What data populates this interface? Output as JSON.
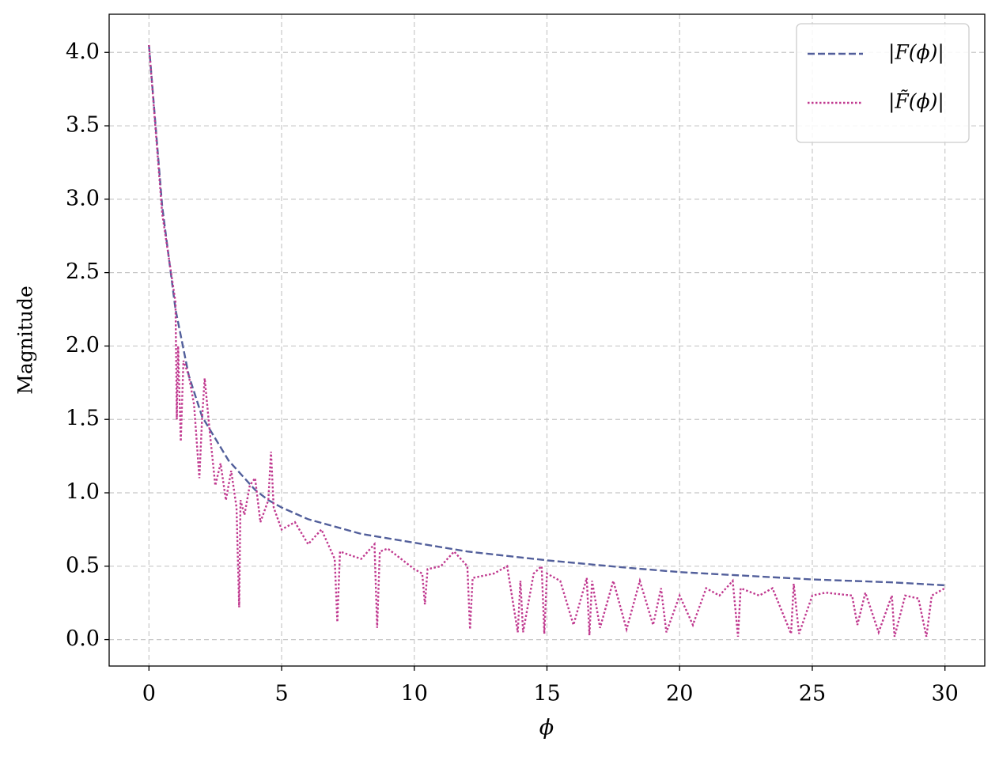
{
  "chart_data": {
    "type": "line",
    "xlabel": "ϕ",
    "ylabel": "Magnitude",
    "xlim": [
      -1.5,
      31.5
    ],
    "ylim": [
      -0.18,
      4.26
    ],
    "xticks": [
      0,
      5,
      10,
      15,
      20,
      25,
      30
    ],
    "yticks": [
      {
        "value": 0,
        "label": "0.0"
      },
      0.5,
      {
        "value": 1,
        "label": "1.0"
      },
      1.5,
      {
        "value": 2,
        "label": "2.0"
      },
      2.5,
      {
        "value": 3,
        "label": "3.0"
      },
      3.5,
      {
        "value": 4,
        "label": "4.0"
      }
    ],
    "grid": true,
    "legend": "upper right",
    "series": [
      {
        "name": "|F(ϕ)|",
        "color": "#525f9b",
        "style": "dashed",
        "x": [
          0,
          0.5,
          1,
          1.5,
          2,
          3,
          4,
          4.5,
          5,
          6,
          7,
          8,
          10,
          12,
          15,
          18,
          20,
          22,
          25,
          28,
          30
        ],
        "values": [
          4.05,
          2.95,
          2.25,
          1.8,
          1.52,
          1.22,
          1.02,
          0.95,
          0.9,
          0.82,
          0.77,
          0.72,
          0.66,
          0.6,
          0.54,
          0.49,
          0.46,
          0.44,
          0.41,
          0.39,
          0.37
        ]
      },
      {
        "name": "|F̃(ϕ)|",
        "color": "#c0398f",
        "style": "dotted",
        "x": [
          0,
          0.5,
          1,
          1.05,
          1.1,
          1.2,
          1.3,
          1.5,
          1.7,
          1.9,
          2.0,
          2.1,
          2.3,
          2.5,
          2.7,
          2.9,
          3.1,
          3.3,
          3.4,
          3.45,
          3.6,
          3.8,
          4.0,
          4.2,
          4.5,
          4.6,
          4.7,
          5,
          5.5,
          6,
          6.5,
          7,
          7.1,
          7.2,
          7.5,
          8,
          8.5,
          8.6,
          8.7,
          9,
          9.5,
          10,
          10.3,
          10.4,
          10.5,
          11,
          11.5,
          12,
          12.1,
          12.2,
          13,
          13.5,
          13.9,
          14,
          14.1,
          14.5,
          14.8,
          14.9,
          15,
          15.5,
          16,
          16.5,
          16.6,
          16.7,
          17,
          17.5,
          18,
          18.5,
          19,
          19.3,
          19.5,
          20,
          20.5,
          21,
          21.5,
          22,
          22.2,
          22.3,
          23,
          23.5,
          24.2,
          24.3,
          24.5,
          25,
          25.5,
          26.5,
          26.7,
          27,
          27.5,
          28,
          28.1,
          28.5,
          29,
          29.3,
          29.5,
          30
        ],
        "values": [
          4.05,
          2.9,
          2.3,
          1.5,
          2.0,
          1.35,
          1.9,
          1.8,
          1.6,
          1.1,
          1.5,
          1.78,
          1.4,
          1.05,
          1.2,
          0.95,
          1.15,
          0.9,
          0.22,
          0.95,
          0.85,
          1.05,
          1.1,
          0.8,
          0.95,
          1.28,
          0.9,
          0.75,
          0.8,
          0.65,
          0.75,
          0.55,
          0.12,
          0.6,
          0.58,
          0.55,
          0.65,
          0.08,
          0.6,
          0.62,
          0.55,
          0.48,
          0.45,
          0.24,
          0.48,
          0.5,
          0.6,
          0.5,
          0.07,
          0.42,
          0.45,
          0.5,
          0.05,
          0.4,
          0.05,
          0.45,
          0.5,
          0.04,
          0.45,
          0.4,
          0.1,
          0.42,
          0.03,
          0.4,
          0.08,
          0.4,
          0.07,
          0.4,
          0.1,
          0.35,
          0.05,
          0.3,
          0.1,
          0.35,
          0.3,
          0.4,
          0.02,
          0.35,
          0.3,
          0.35,
          0.04,
          0.38,
          0.04,
          0.3,
          0.32,
          0.3,
          0.1,
          0.32,
          0.05,
          0.3,
          0.02,
          0.3,
          0.28,
          0.02,
          0.3,
          0.35
        ]
      }
    ]
  }
}
